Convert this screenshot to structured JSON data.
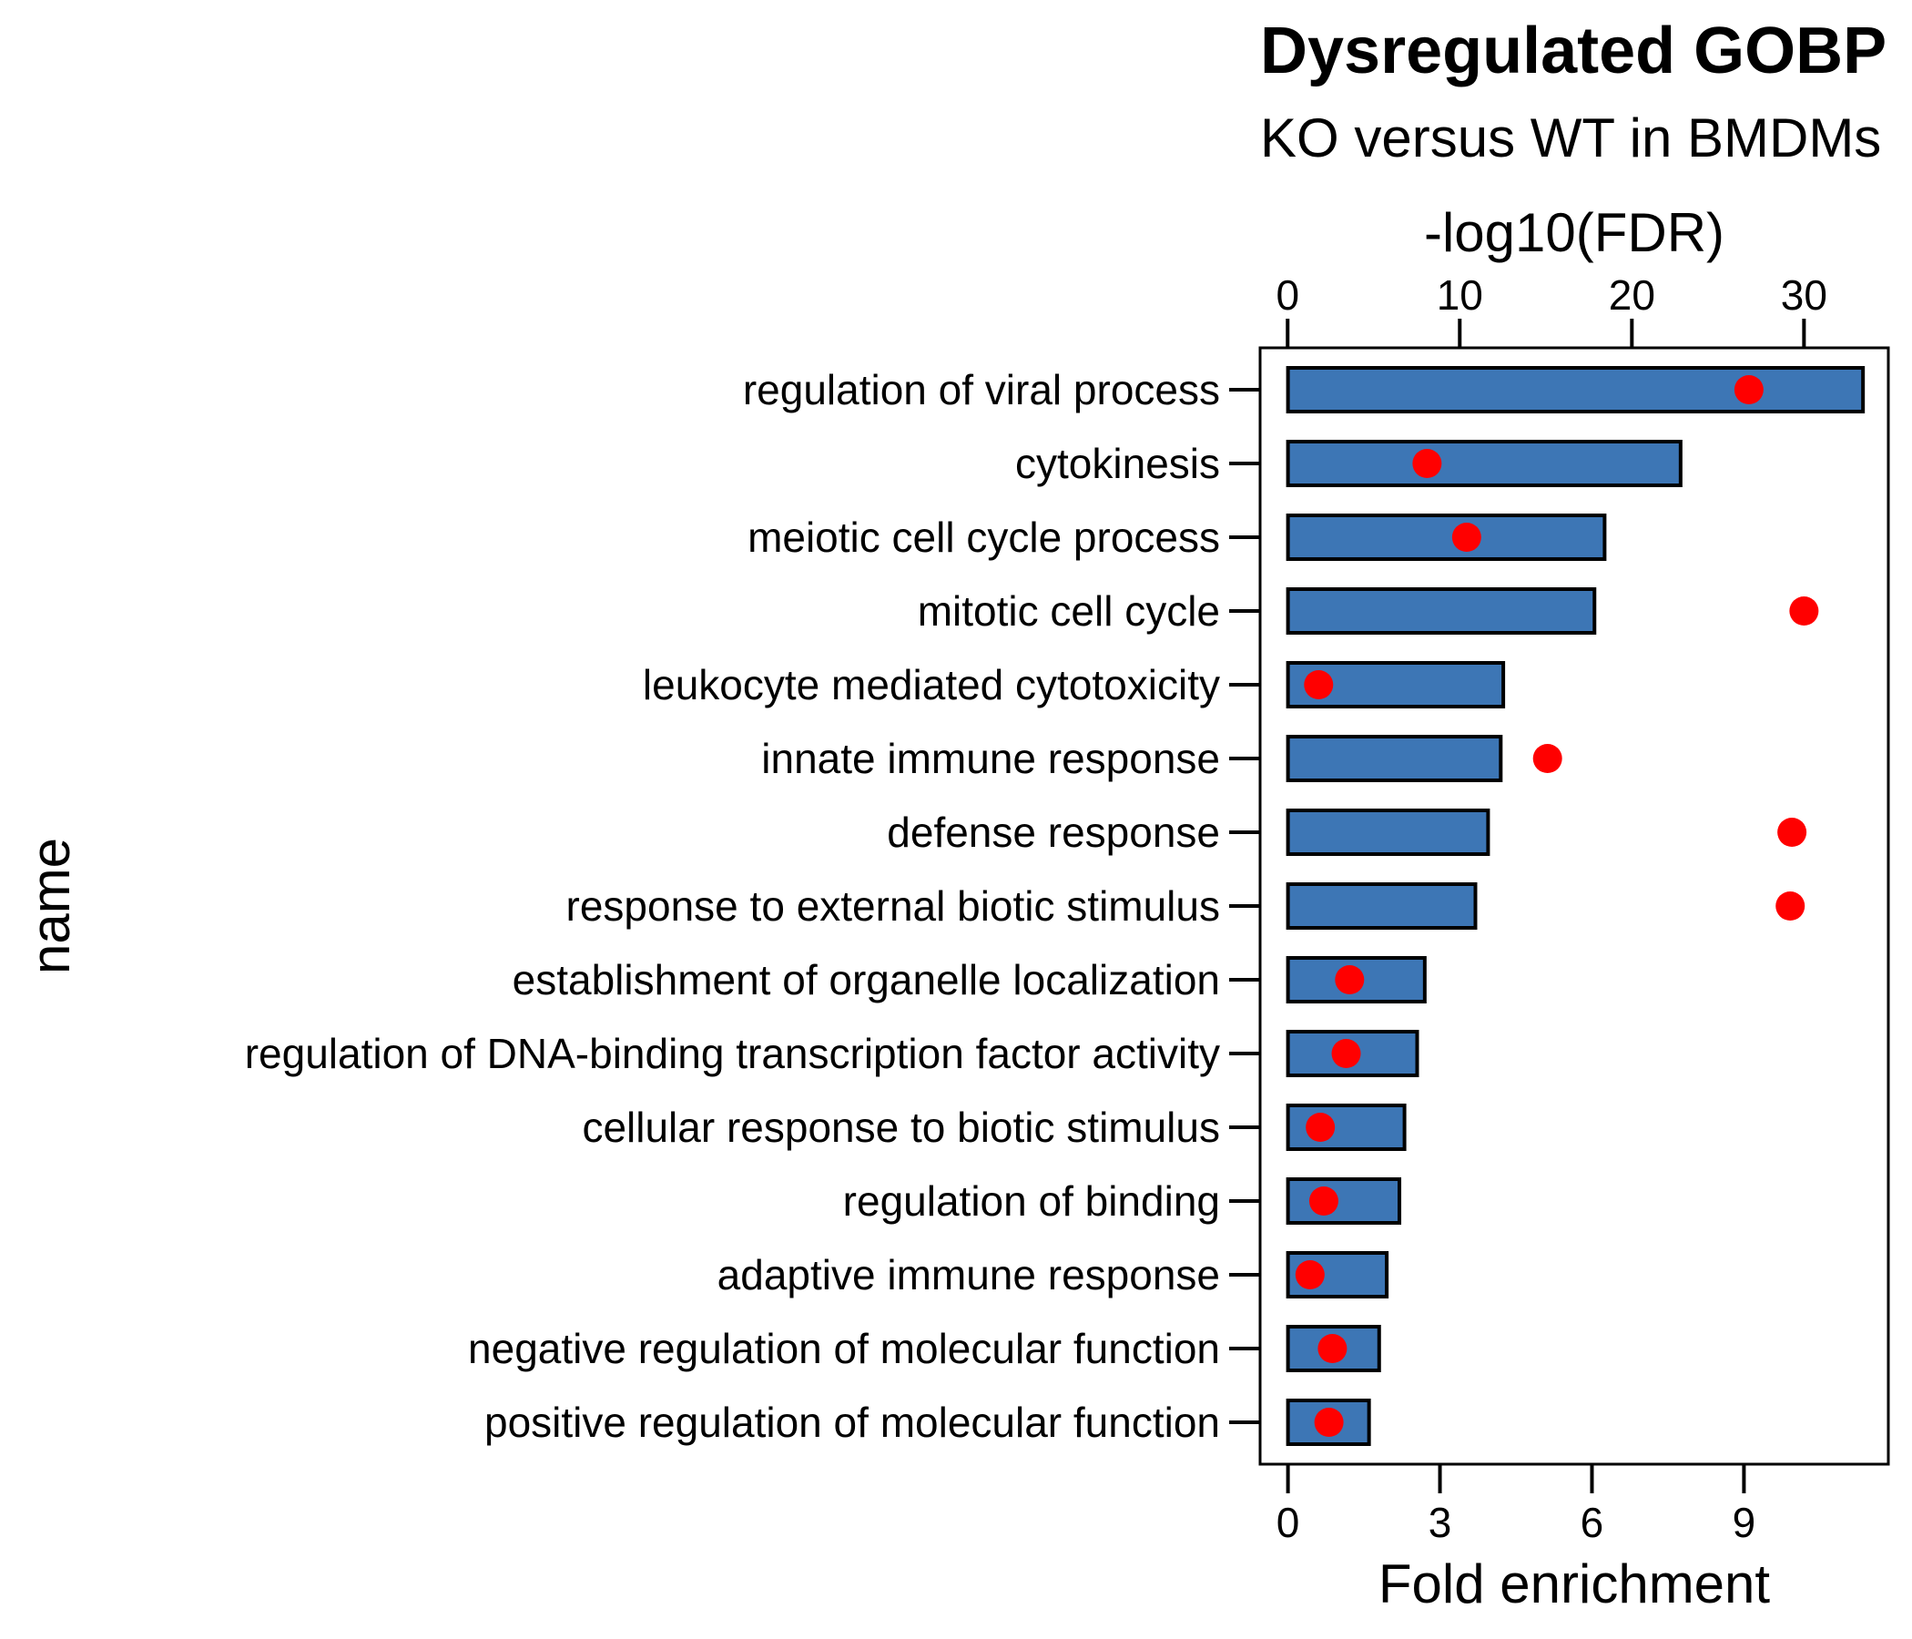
{
  "chart_data": {
    "type": "bar",
    "title": "Dysregulated GOBP",
    "subtitle": "KO versus WT in BMDMs",
    "ylabel": "name",
    "x_bottom": {
      "label": "Fold enrichment",
      "ticks": [
        0,
        3,
        6,
        9
      ],
      "range": [
        -0.55,
        11.85
      ]
    },
    "x_top": {
      "label": "-log10(FDR)",
      "ticks": [
        0,
        10,
        20,
        30
      ],
      "range": [
        -1.6,
        34.9
      ]
    },
    "categories": [
      "regulation of viral process",
      "cytokinesis",
      "meiotic cell cycle process",
      "mitotic cell cycle",
      "leukocyte mediated cytotoxicity",
      "innate immune response",
      "defense response",
      "response to external biotic stimulus",
      "establishment of organelle localization",
      "regulation of DNA-binding transcription factor activity",
      "cellular response to biotic stimulus",
      "regulation of binding",
      "adaptive immune response",
      "negative regulation of molecular function",
      "positive regulation of molecular function"
    ],
    "series": [
      {
        "axis": "bottom",
        "type": "bar",
        "color": "#3d76b5",
        "values": [
          11.35,
          7.75,
          6.25,
          6.05,
          4.25,
          4.2,
          3.95,
          3.7,
          2.7,
          2.55,
          2.3,
          2.2,
          1.95,
          1.8,
          1.6
        ]
      },
      {
        "axis": "top",
        "type": "scatter",
        "color": "#ff0000",
        "values": [
          26.8,
          8.1,
          10.4,
          30.0,
          1.8,
          15.1,
          29.3,
          29.2,
          3.6,
          3.4,
          1.9,
          2.1,
          1.3,
          2.6,
          2.4
        ]
      }
    ]
  }
}
